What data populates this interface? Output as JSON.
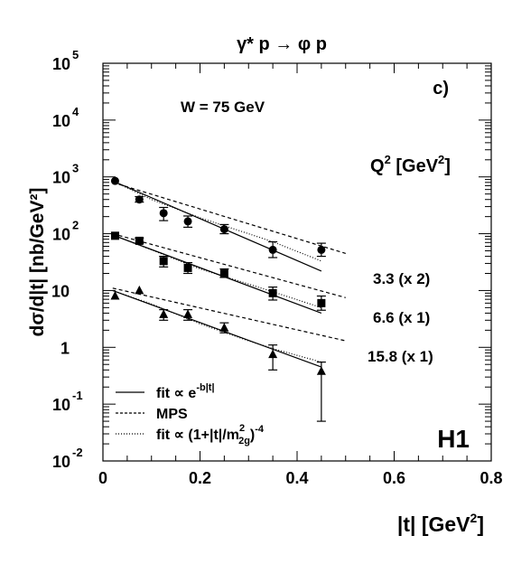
{
  "chart_data": {
    "type": "scatter",
    "title": "γ* p → φ p",
    "panel_label": "c)",
    "experiment_label": "H1",
    "annotation": "W = 75 GeV",
    "q2_header": {
      "base": "Q",
      "sup": "2",
      "unit_open": " [GeV",
      "unit_sup": "2",
      "unit_close": "]"
    },
    "xlabel": {
      "main": "|t| [GeV",
      "sup": "2",
      "close": "]"
    },
    "ylabel": "dσ/d|t| [nb/GeV²]",
    "x_range": [
      0,
      0.8
    ],
    "y_range": [
      0.01,
      100000
    ],
    "y_scale": "log",
    "x_ticks": [
      "0",
      "0.2",
      "0.4",
      "0.6",
      "0.8"
    ],
    "y_ticks": [
      {
        "value": 100000,
        "base": "10",
        "sup": "5"
      },
      {
        "value": 10000,
        "base": "10",
        "sup": "4"
      },
      {
        "value": 1000,
        "base": "10",
        "sup": "3"
      },
      {
        "value": 100,
        "base": "10",
        "sup": "2"
      },
      {
        "value": 10,
        "base": "10",
        "sup": ""
      },
      {
        "value": 1,
        "base": "1",
        "sup": ""
      },
      {
        "value": 0.1,
        "base": "10",
        "sup": "-1"
      },
      {
        "value": 0.01,
        "base": "10",
        "sup": "-2"
      }
    ],
    "series": [
      {
        "label": "3.3 (x 2)",
        "marker": "circle",
        "x": [
          0.025,
          0.075,
          0.125,
          0.175,
          0.25,
          0.35,
          0.45
        ],
        "y": [
          850,
          400,
          230,
          165,
          120,
          52,
          52
        ],
        "y_lo": [
          850,
          360,
          170,
          130,
          100,
          38,
          40
        ],
        "y_hi": [
          850,
          450,
          290,
          205,
          145,
          72,
          68
        ],
        "fit_exp": {
          "x": [
            0.02,
            0.45
          ],
          "y": [
            850,
            22
          ]
        },
        "mps": {
          "x": [
            0.02,
            0.5
          ],
          "y": [
            800,
            45
          ]
        },
        "fit_dipole": {
          "x": [
            0.02,
            0.1,
            0.2,
            0.3,
            0.35,
            0.45
          ],
          "y": [
            850,
            400,
            190,
            100,
            72,
            33
          ]
        }
      },
      {
        "label": "6.6 (x 1)",
        "marker": "square",
        "x": [
          0.025,
          0.075,
          0.125,
          0.175,
          0.25,
          0.35,
          0.45
        ],
        "y": [
          92,
          75,
          33,
          25,
          20,
          9,
          6
        ],
        "y_lo": [
          92,
          68,
          26,
          20,
          17,
          6.8,
          4.5
        ],
        "y_hi": [
          92,
          84,
          40,
          31,
          24,
          11.5,
          8
        ],
        "fit_exp": {
          "x": [
            0.02,
            0.45
          ],
          "y": [
            95,
            4
          ]
        },
        "mps": {
          "x": [
            0.02,
            0.5
          ],
          "y": [
            100,
            7.5
          ]
        },
        "fit_dipole": {
          "x": [
            0.02,
            0.1,
            0.2,
            0.3,
            0.35,
            0.45
          ],
          "y": [
            95,
            52,
            24,
            13,
            9.5,
            5
          ]
        }
      },
      {
        "label": "15.8 (x 1)",
        "marker": "triangle",
        "x": [
          0.025,
          0.075,
          0.125,
          0.175,
          0.25,
          0.35,
          0.45
        ],
        "y": [
          8,
          10,
          3.8,
          3.8,
          2.2,
          0.75,
          0.38
        ],
        "y_lo": [
          8,
          10,
          3.0,
          3.0,
          1.8,
          0.4,
          0.05
        ],
        "y_hi": [
          8,
          10,
          4.6,
          4.6,
          2.7,
          1.1,
          0.55
        ],
        "fit_exp": {
          "x": [
            0.02,
            0.45
          ],
          "y": [
            10,
            0.45
          ]
        },
        "mps": {
          "x": [
            0.02,
            0.5
          ],
          "y": [
            11,
            1.3
          ]
        },
        "fit_dipole": {
          "x": [
            0.02,
            0.1,
            0.2,
            0.3,
            0.35,
            0.45
          ],
          "y": [
            10,
            5.8,
            2.6,
            1.3,
            0.95,
            0.55
          ]
        }
      }
    ],
    "legend": {
      "placement": "bottom-left",
      "fit_exp": {
        "text": "fit ∝ e",
        "sup": "-b|t|"
      },
      "mps": {
        "text": "MPS"
      },
      "fit_dipole": {
        "pre": "fit ∝ (1+|t|/m",
        "sup": "2",
        "sub": "2g",
        "post": ")",
        "exp": "-4"
      }
    }
  }
}
